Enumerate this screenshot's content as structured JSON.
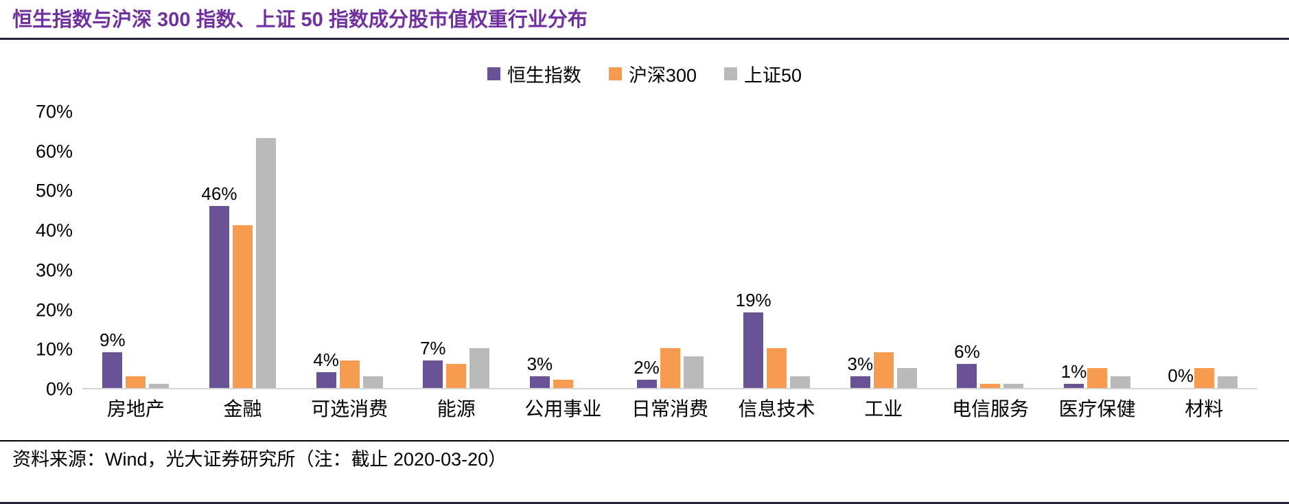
{
  "header": {
    "title": "恒生指数与沪深 300 指数、上证 50 指数成分股市值权重行业分布"
  },
  "chart_data": {
    "type": "bar",
    "grouped": true,
    "title": "恒生指数与沪深 300 指数、上证 50 指数成分股市值权重行业分布",
    "categories": [
      "房地产",
      "金融",
      "可选消费",
      "能源",
      "公用事业",
      "日常消费",
      "信息技术",
      "工业",
      "电信服务",
      "医疗保健",
      "材料"
    ],
    "series": [
      {
        "name": "恒生指数",
        "color": "#6A5296",
        "values": [
          9,
          46,
          4,
          7,
          3,
          2,
          19,
          3,
          6,
          1,
          0
        ],
        "data_labels": [
          "9%",
          "46%",
          "4%",
          "7%",
          "3%",
          "2%",
          "19%",
          "3%",
          "6%",
          "1%",
          "0%"
        ]
      },
      {
        "name": "沪深300",
        "color": "#F79B50",
        "values": [
          3,
          41,
          7,
          6,
          2,
          10,
          10,
          9,
          1,
          5,
          5
        ]
      },
      {
        "name": "上证50",
        "color": "#B9B9B9",
        "values": [
          1,
          63,
          3,
          10,
          0,
          8,
          3,
          5,
          1,
          3,
          3
        ]
      }
    ],
    "xlabel": "",
    "ylabel": "",
    "ylim": [
      0,
      70
    ],
    "yticks": [
      0,
      10,
      20,
      30,
      40,
      50,
      60,
      70
    ],
    "ytick_labels": [
      "0%",
      "10%",
      "20%",
      "30%",
      "40%",
      "50%",
      "60%",
      "70%"
    ],
    "legend_position": "top-center",
    "grid": false
  },
  "footer": {
    "source": "资料来源：Wind，光大证券研究所（注：截止 2020-03-20）"
  },
  "colors": {
    "title_text": "#7030A0",
    "title_rule": "#23233F",
    "axis_line": "#D6D6D6",
    "hang_seng_purple": "#6A5296",
    "hs300_orange": "#F79B50",
    "sse50_gray": "#B9B9B9"
  }
}
